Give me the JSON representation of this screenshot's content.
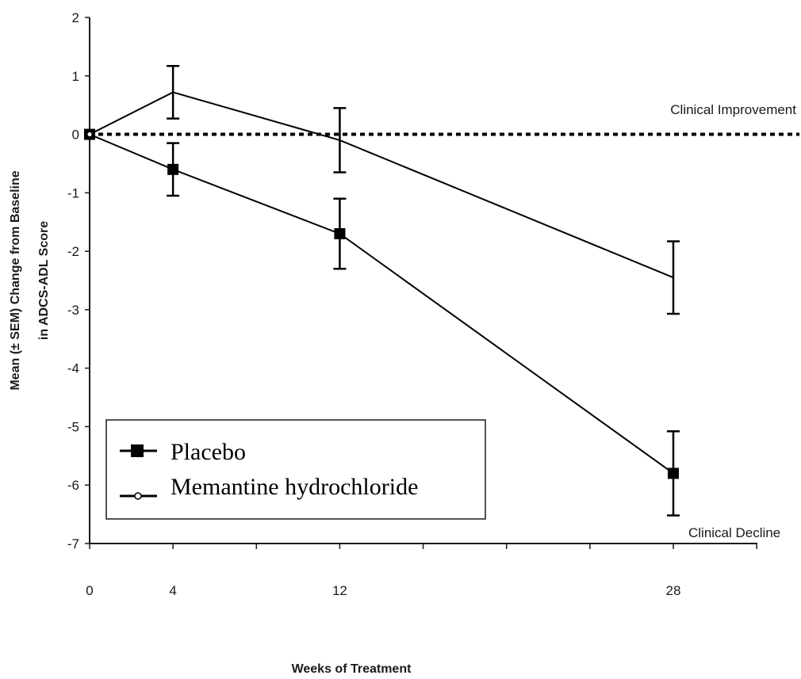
{
  "chart_data": {
    "type": "line",
    "title": "",
    "xlabel": "Weeks of Treatment",
    "ylabel_line1": "Mean (± SEM) Change from Baseline",
    "ylabel_line2": "in ADCS-ADL Score",
    "x": [
      0,
      4,
      12,
      28
    ],
    "xticks": [
      "0",
      "4",
      "12",
      "28"
    ],
    "xlim": [
      0,
      28
    ],
    "yticks": [
      "2",
      "1",
      "0",
      "-1",
      "-2",
      "-3",
      "-4",
      "-5",
      "-6",
      "-7"
    ],
    "ylim": [
      -7,
      2
    ],
    "reference_line": {
      "y": 0,
      "style": "dotted"
    },
    "annotations": {
      "improvement": "Clinical Improvement",
      "decline": "Clinical Decline"
    },
    "legend_position": "bottom-left",
    "series": [
      {
        "name": "Placebo",
        "marker": "square",
        "values": [
          0,
          -0.6,
          -1.7,
          -5.8
        ],
        "sem": [
          0,
          0.45,
          0.6,
          0.72
        ]
      },
      {
        "name": "Memantine hydrochloride",
        "marker": "circle",
        "values": [
          0,
          0.72,
          -0.1,
          -2.45
        ],
        "sem": [
          0,
          0.45,
          0.55,
          0.62
        ]
      }
    ],
    "colors": {
      "line": "#000000",
      "axis": "#1a1a1a"
    }
  }
}
